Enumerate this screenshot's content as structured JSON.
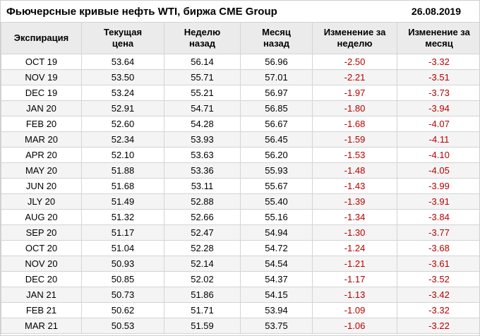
{
  "header": {
    "title": "Фьючерсные кривые нефть WTI, биржа CME Group",
    "date": "26.08.2019"
  },
  "table": {
    "columns": [
      "Экспирация",
      "Текущая\nцена",
      "Неделю\nназад",
      "Месяц\nназад",
      "Изменение за\nнеделю",
      "Изменение за\nмесяц"
    ],
    "rows": [
      [
        "OCT 19",
        "53.64",
        "56.14",
        "56.96",
        "-2.50",
        "-3.32"
      ],
      [
        "NOV 19",
        "53.50",
        "55.71",
        "57.01",
        "-2.21",
        "-3.51"
      ],
      [
        "DEC 19",
        "53.24",
        "55.21",
        "56.97",
        "-1.97",
        "-3.73"
      ],
      [
        "JAN 20",
        "52.91",
        "54.71",
        "56.85",
        "-1.80",
        "-3.94"
      ],
      [
        "FEB 20",
        "52.60",
        "54.28",
        "56.67",
        "-1.68",
        "-4.07"
      ],
      [
        "MAR 20",
        "52.34",
        "53.93",
        "56.45",
        "-1.59",
        "-4.11"
      ],
      [
        "APR 20",
        "52.10",
        "53.63",
        "56.20",
        "-1.53",
        "-4.10"
      ],
      [
        "MAY 20",
        "51.88",
        "53.36",
        "55.93",
        "-1.48",
        "-4.05"
      ],
      [
        "JUN 20",
        "51.68",
        "53.11",
        "55.67",
        "-1.43",
        "-3.99"
      ],
      [
        "JLY 20",
        "51.49",
        "52.88",
        "55.40",
        "-1.39",
        "-3.91"
      ],
      [
        "AUG 20",
        "51.32",
        "52.66",
        "55.16",
        "-1.34",
        "-3.84"
      ],
      [
        "SEP 20",
        "51.17",
        "52.47",
        "54.94",
        "-1.30",
        "-3.77"
      ],
      [
        "OCT 20",
        "51.04",
        "52.28",
        "54.72",
        "-1.24",
        "-3.68"
      ],
      [
        "NOV 20",
        "50.93",
        "52.14",
        "54.54",
        "-1.21",
        "-3.61"
      ],
      [
        "DEC 20",
        "50.85",
        "52.02",
        "54.37",
        "-1.17",
        "-3.52"
      ],
      [
        "JAN 21",
        "50.73",
        "51.86",
        "54.15",
        "-1.13",
        "-3.42"
      ],
      [
        "FEB 21",
        "50.62",
        "51.71",
        "53.94",
        "-1.09",
        "-3.32"
      ],
      [
        "MAR 21",
        "50.53",
        "51.59",
        "53.75",
        "-1.06",
        "-3.22"
      ]
    ]
  },
  "colors": {
    "negative": "#b80000",
    "header_bg": "#ebebeb",
    "row_alt_bg": "#f4f4f4",
    "grid_line": "#d4d4d4"
  },
  "chart_data": {
    "type": "table",
    "title": "Фьючерсные кривые нефть WTI, биржа CME Group",
    "date": "26.08.2019",
    "columns": [
      "Экспирация",
      "Текущая цена",
      "Неделю назад",
      "Месяц назад",
      "Изменение за неделю",
      "Изменение за месяц"
    ],
    "rows": [
      [
        "OCT 19",
        53.64,
        56.14,
        56.96,
        -2.5,
        -3.32
      ],
      [
        "NOV 19",
        53.5,
        55.71,
        57.01,
        -2.21,
        -3.51
      ],
      [
        "DEC 19",
        53.24,
        55.21,
        56.97,
        -1.97,
        -3.73
      ],
      [
        "JAN 20",
        52.91,
        54.71,
        56.85,
        -1.8,
        -3.94
      ],
      [
        "FEB 20",
        52.6,
        54.28,
        56.67,
        -1.68,
        -4.07
      ],
      [
        "MAR 20",
        52.34,
        53.93,
        56.45,
        -1.59,
        -4.11
      ],
      [
        "APR 20",
        52.1,
        53.63,
        56.2,
        -1.53,
        -4.1
      ],
      [
        "MAY 20",
        51.88,
        53.36,
        55.93,
        -1.48,
        -4.05
      ],
      [
        "JUN 20",
        51.68,
        53.11,
        55.67,
        -1.43,
        -3.99
      ],
      [
        "JLY 20",
        51.49,
        52.88,
        55.4,
        -1.39,
        -3.91
      ],
      [
        "AUG 20",
        51.32,
        52.66,
        55.16,
        -1.34,
        -3.84
      ],
      [
        "SEP 20",
        51.17,
        52.47,
        54.94,
        -1.3,
        -3.77
      ],
      [
        "OCT 20",
        51.04,
        52.28,
        54.72,
        -1.24,
        -3.68
      ],
      [
        "NOV 20",
        50.93,
        52.14,
        54.54,
        -1.21,
        -3.61
      ],
      [
        "DEC 20",
        50.85,
        52.02,
        54.37,
        -1.17,
        -3.52
      ],
      [
        "JAN 21",
        50.73,
        51.86,
        54.15,
        -1.13,
        -3.42
      ],
      [
        "FEB 21",
        50.62,
        51.71,
        53.94,
        -1.09,
        -3.32
      ],
      [
        "MAR 21",
        50.53,
        51.59,
        53.75,
        -1.06,
        -3.22
      ]
    ]
  }
}
